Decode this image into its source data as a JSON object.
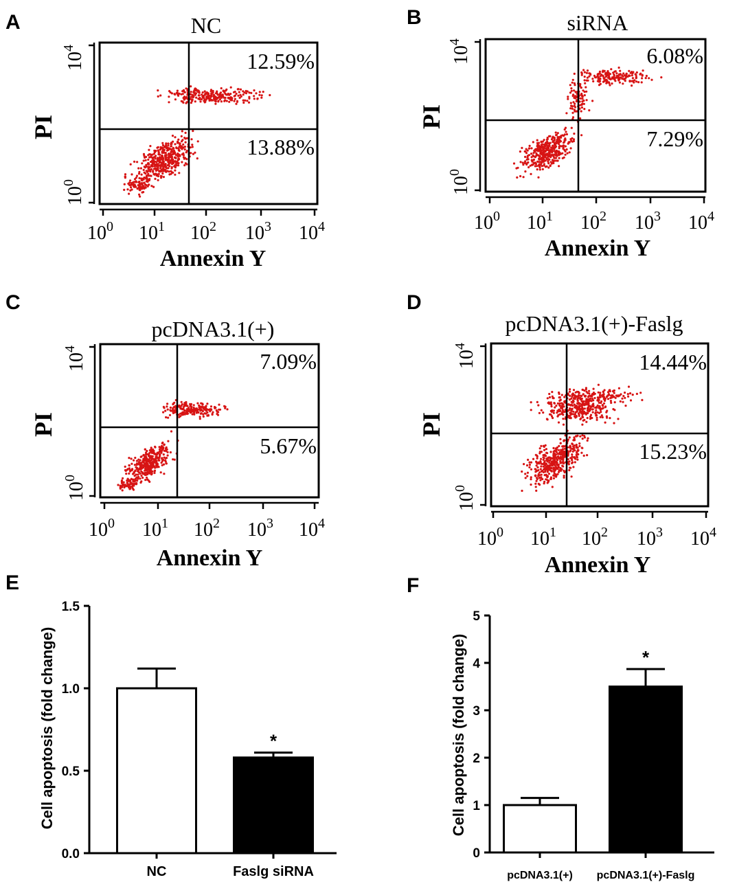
{
  "panels": {
    "A": {
      "letter": "A",
      "title": "NC",
      "xlabel": "Annexin Y",
      "ylabel": "PI",
      "upper_right": "12.59%",
      "lower_right": "13.88%",
      "x_ticks": [
        "10^0",
        "10^1",
        "10^2",
        "10^3",
        "10^4"
      ],
      "y_ticks": [
        "10^0",
        "10^4"
      ]
    },
    "B": {
      "letter": "B",
      "title": "siRNA",
      "xlabel": "Annexin Y",
      "ylabel": "PI",
      "upper_right": "6.08%",
      "lower_right": "7.29%",
      "x_ticks": [
        "10^0",
        "10^1",
        "10^2",
        "10^3",
        "10^4"
      ],
      "y_ticks": [
        "10^0",
        "10^4"
      ]
    },
    "C": {
      "letter": "C",
      "title": "pcDNA3.1(+)",
      "xlabel": "Annexin Y",
      "ylabel": "PI",
      "upper_right": "7.09%",
      "lower_right": "5.67%",
      "x_ticks": [
        "10^0",
        "10^1",
        "10^2",
        "10^3",
        "10^4"
      ],
      "y_ticks": [
        "10^0",
        "10^4"
      ]
    },
    "D": {
      "letter": "D",
      "title": "pcDNA3.1(+)-Faslg",
      "xlabel": "Annexin Y",
      "ylabel": "PI",
      "upper_right": "14.44%",
      "lower_right": "15.23%",
      "x_ticks": [
        "10^0",
        "10^1",
        "10^2",
        "10^3",
        "10^4"
      ],
      "y_ticks": [
        "10^0",
        "10^4"
      ]
    },
    "E": {
      "letter": "E"
    },
    "F": {
      "letter": "F"
    }
  },
  "colors": {
    "dots": "#d71414",
    "bar_control": "#ffffff",
    "bar_treated": "#000000",
    "axis": "#000000"
  },
  "chart_data": [
    {
      "panel": "E",
      "type": "bar",
      "categories": [
        "NC",
        "Faslg siRNA"
      ],
      "values": [
        1.0,
        0.58
      ],
      "errors": [
        0.12,
        0.03
      ],
      "significance": [
        "",
        "*"
      ],
      "ylabel": "Cell apoptosis (fold change)",
      "xlabel": "",
      "ylim": [
        0,
        1.5
      ],
      "yticks": [
        "0.0",
        "0.5",
        "1.0",
        "1.5"
      ]
    },
    {
      "panel": "F",
      "type": "bar",
      "categories": [
        "pcDNA3.1(+)",
        "pcDNA3.1(+)-Faslg"
      ],
      "values": [
        1.0,
        3.5
      ],
      "errors": [
        0.15,
        0.37
      ],
      "significance": [
        "",
        "*"
      ],
      "ylabel": "Cell apoptosis (fold change)",
      "xlabel": "",
      "ylim": [
        0,
        5
      ],
      "yticks": [
        "0",
        "1",
        "2",
        "3",
        "4",
        "5"
      ]
    }
  ]
}
